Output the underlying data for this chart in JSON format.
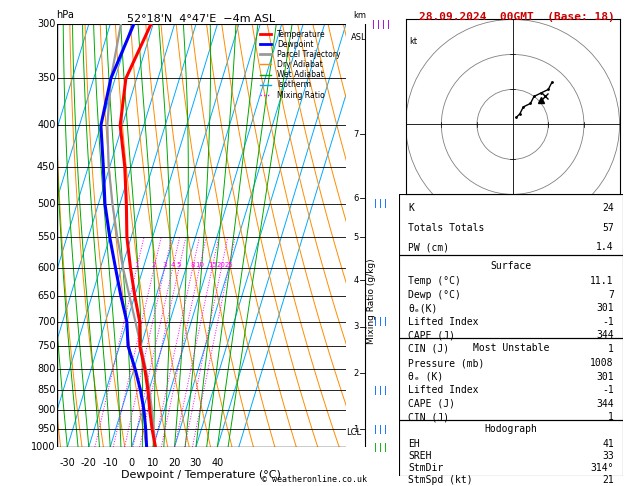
{
  "title_left": "52°18'N  4°47'E  −4m ASL",
  "title_right": "28.09.2024  00GMT  (Base: 18)",
  "xlabel": "Dewpoint / Temperature (°C)",
  "temp_color": "#ff0000",
  "dewp_color": "#0000ff",
  "parcel_color": "#999999",
  "dry_adiabat_color": "#ff8c00",
  "wet_adiabat_color": "#00aa00",
  "isotherm_color": "#00aaff",
  "mixing_ratio_color": "#ff00ff",
  "x_min": -35,
  "x_max": 40,
  "legend_items": [
    {
      "label": "Temperature",
      "color": "#ff0000",
      "ls": "-",
      "lw": 2
    },
    {
      "label": "Dewpoint",
      "color": "#0000ff",
      "ls": "-",
      "lw": 2
    },
    {
      "label": "Parcel Trajectory",
      "color": "#999999",
      "ls": "-",
      "lw": 2
    },
    {
      "label": "Dry Adiabat",
      "color": "#ff8c00",
      "ls": "-",
      "lw": 1
    },
    {
      "label": "Wet Adiabat",
      "color": "#00aa00",
      "ls": "-",
      "lw": 1
    },
    {
      "label": "Isotherm",
      "color": "#00aaff",
      "ls": "-",
      "lw": 1
    },
    {
      "label": "Mixing Ratio",
      "color": "#ff00ff",
      "ls": ":",
      "lw": 1
    }
  ],
  "K": 24,
  "TT": 57,
  "PW": 1.4,
  "surf_temp": 11.1,
  "surf_dewp": 7,
  "surf_thetae": 301,
  "surf_li": -1,
  "surf_cape": 344,
  "surf_cin": 1,
  "mu_pressure": 1008,
  "mu_thetae": 301,
  "mu_li": -1,
  "mu_cape": 344,
  "mu_cin": 1,
  "EH": 41,
  "SREH": 33,
  "StmDir": "314°",
  "StmSpd": 21,
  "temp_profile_p": [
    1000,
    950,
    900,
    850,
    800,
    750,
    700,
    650,
    600,
    550,
    500,
    450,
    400,
    350,
    300
  ],
  "temp_profile_t": [
    11.1,
    7.0,
    3.2,
    -0.5,
    -5.0,
    -10.5,
    -14.0,
    -20.0,
    -26.0,
    -32.0,
    -37.0,
    -43.0,
    -51.0,
    -55.0,
    -51.0
  ],
  "dewp_profile_p": [
    1000,
    950,
    900,
    850,
    800,
    750,
    700,
    650,
    600,
    550,
    500,
    450,
    400,
    350,
    300
  ],
  "dewp_profile_t": [
    7.0,
    4.0,
    0.5,
    -4.0,
    -9.5,
    -16.0,
    -20.0,
    -26.5,
    -33.0,
    -40.0,
    -47.0,
    -53.0,
    -60.0,
    -62.0,
    -59.0
  ],
  "parcel_profile_p": [
    1000,
    950,
    900,
    850,
    800,
    750,
    700,
    650,
    600,
    550,
    500,
    450,
    400,
    350,
    300
  ],
  "parcel_profile_t": [
    11.1,
    7.8,
    4.2,
    0.2,
    -4.5,
    -10.0,
    -16.0,
    -22.5,
    -29.5,
    -36.5,
    -43.5,
    -50.5,
    -57.0,
    -62.0,
    -65.0
  ],
  "lcl_pressure": 960,
  "mixing_ratio_values": [
    1,
    2,
    3,
    4,
    5,
    8,
    10,
    15,
    20,
    25
  ],
  "copyright": "© weatheronline.co.uk"
}
